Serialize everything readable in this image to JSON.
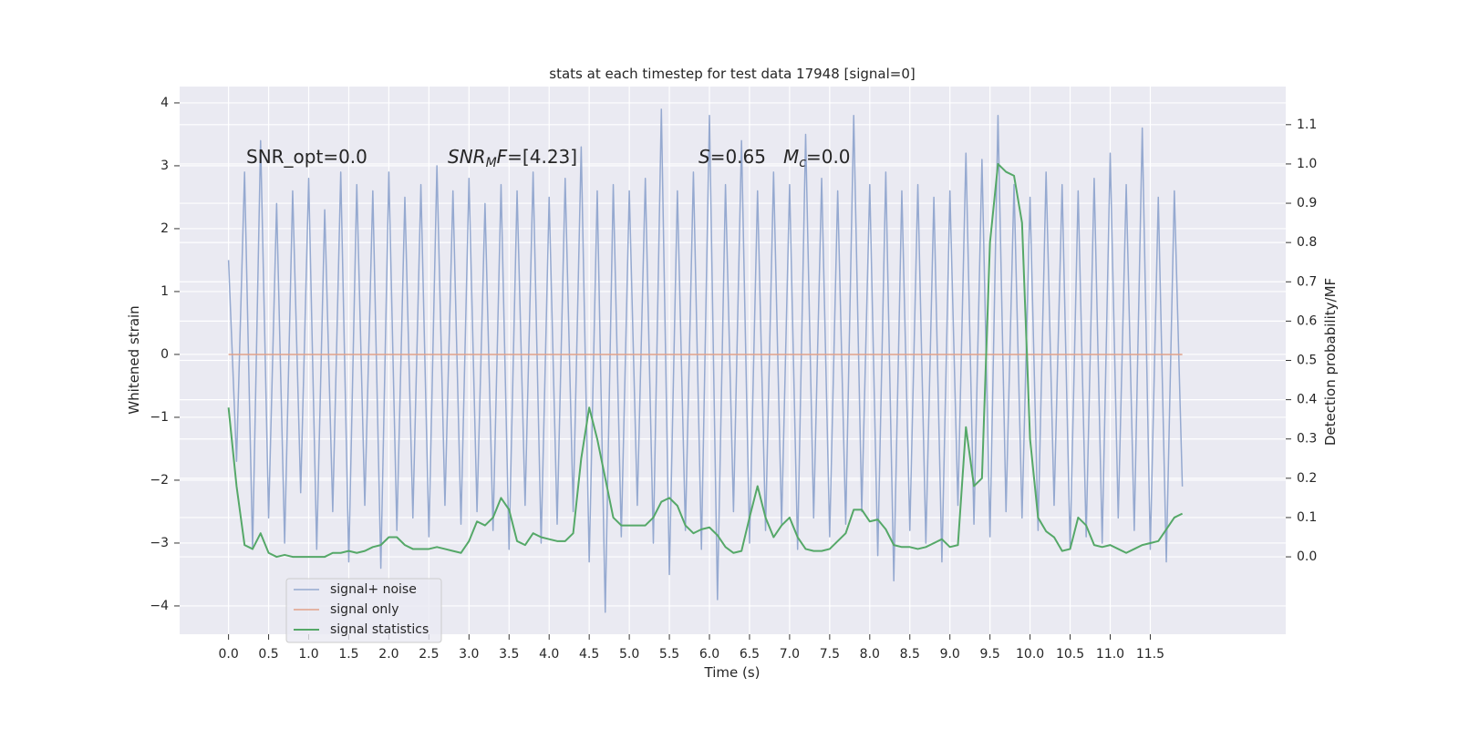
{
  "chart_data": {
    "type": "line",
    "title": "stats at each timestep for test data 17948 [signal=0]",
    "x_label": "Time (s)",
    "y_label": "Whitened strain",
    "y2_label": "Detection probability/MF",
    "x": [
      0,
      0.1,
      0.2,
      0.3,
      0.4,
      0.5,
      0.6,
      0.7,
      0.8,
      0.9,
      1,
      1.1,
      1.2,
      1.3,
      1.4,
      1.5,
      1.6,
      1.7,
      1.8,
      1.9,
      2,
      2.1,
      2.2,
      2.3,
      2.4,
      2.5,
      2.6,
      2.7,
      2.8,
      2.9,
      3,
      3.1,
      3.2,
      3.3,
      3.4,
      3.5,
      3.6,
      3.7,
      3.8,
      3.9,
      4,
      4.1,
      4.2,
      4.3,
      4.4,
      4.5,
      4.6,
      4.7,
      4.8,
      4.9,
      5,
      5.1,
      5.2,
      5.3,
      5.4,
      5.5,
      5.6,
      5.7,
      5.8,
      5.9,
      6,
      6.1,
      6.2,
      6.3,
      6.4,
      6.5,
      6.6,
      6.7,
      6.8,
      6.9,
      7,
      7.1,
      7.2,
      7.3,
      7.4,
      7.5,
      7.6,
      7.7,
      7.8,
      7.9,
      8,
      8.1,
      8.2,
      8.3,
      8.4,
      8.5,
      8.6,
      8.7,
      8.8,
      8.9,
      9,
      9.1,
      9.2,
      9.3,
      9.4,
      9.5,
      9.6,
      9.7,
      9.8,
      9.9,
      10,
      10.1,
      10.2,
      10.3,
      10.4,
      10.5,
      10.6,
      10.7,
      10.8,
      10.9,
      11,
      11.1,
      11.2,
      11.3,
      11.4,
      11.5,
      11.6,
      11.7,
      11.8,
      11.9
    ],
    "series": [
      {
        "name": "signal+ noise",
        "color": "#95a9d0",
        "values": [
          1.5,
          -1.7,
          2.9,
          -3.1,
          3.4,
          -2.6,
          2.4,
          -3.0,
          2.6,
          -2.2,
          2.8,
          -3.1,
          2.3,
          -2.5,
          2.9,
          -3.3,
          2.7,
          -2.4,
          2.6,
          -3.4,
          2.9,
          -2.8,
          2.5,
          -2.6,
          2.7,
          -2.9,
          3.0,
          -2.4,
          2.6,
          -2.7,
          2.8,
          -2.5,
          2.4,
          -2.8,
          2.7,
          -3.1,
          2.6,
          -2.4,
          2.9,
          -3.0,
          2.5,
          -2.7,
          2.8,
          -2.5,
          3.3,
          -3.3,
          2.6,
          -4.1,
          2.7,
          -2.9,
          2.6,
          -2.4,
          2.8,
          -3.0,
          3.9,
          -3.5,
          2.6,
          -2.8,
          2.9,
          -3.1,
          3.8,
          -3.9,
          2.7,
          -2.5,
          3.4,
          -3.0,
          2.6,
          -2.8,
          2.9,
          -2.7,
          2.7,
          -3.1,
          3.5,
          -2.6,
          2.8,
          -2.9,
          2.6,
          -2.7,
          3.8,
          -2.5,
          2.7,
          -3.2,
          2.9,
          -3.6,
          2.6,
          -2.8,
          2.7,
          -3.0,
          2.5,
          -3.3,
          2.6,
          -2.4,
          3.2,
          -2.7,
          3.1,
          -2.9,
          3.8,
          -2.5,
          2.7,
          -2.6,
          2.5,
          -2.8,
          2.9,
          -2.4,
          2.7,
          -3.1,
          2.6,
          -2.9,
          2.8,
          -3.0,
          3.2,
          -2.6,
          2.7,
          -2.8,
          3.6,
          -3.1,
          2.5,
          -3.3,
          2.6,
          -2.1
        ]
      },
      {
        "name": "signal only",
        "color": "#e1a28a",
        "values": [
          0,
          0,
          0,
          0,
          0,
          0,
          0,
          0,
          0,
          0,
          0,
          0,
          0,
          0,
          0,
          0,
          0,
          0,
          0,
          0,
          0,
          0,
          0,
          0,
          0,
          0,
          0,
          0,
          0,
          0,
          0,
          0,
          0,
          0,
          0,
          0,
          0,
          0,
          0,
          0,
          0,
          0,
          0,
          0,
          0,
          0,
          0,
          0,
          0,
          0,
          0,
          0,
          0,
          0,
          0,
          0,
          0,
          0,
          0,
          0,
          0,
          0,
          0,
          0,
          0,
          0,
          0,
          0,
          0,
          0,
          0,
          0,
          0,
          0,
          0,
          0,
          0,
          0,
          0,
          0,
          0,
          0,
          0,
          0,
          0,
          0,
          0,
          0,
          0,
          0,
          0,
          0,
          0,
          0,
          0,
          0,
          0,
          0,
          0,
          0,
          0,
          0,
          0,
          0,
          0,
          0,
          0,
          0,
          0,
          0,
          0,
          0,
          0,
          0,
          0,
          0,
          0,
          0,
          0,
          0
        ]
      },
      {
        "name": "signal statistics",
        "color": "#55a868",
        "axis": "y2",
        "values": [
          0.38,
          0.18,
          0.03,
          0.02,
          0.06,
          0.01,
          0.0,
          0.005,
          0.0,
          0.0,
          0.0,
          0.0,
          0.0,
          0.01,
          0.01,
          0.015,
          0.01,
          0.015,
          0.025,
          0.03,
          0.05,
          0.05,
          0.03,
          0.02,
          0.02,
          0.02,
          0.025,
          0.02,
          0.015,
          0.01,
          0.04,
          0.09,
          0.08,
          0.1,
          0.15,
          0.12,
          0.04,
          0.03,
          0.06,
          0.05,
          0.045,
          0.04,
          0.04,
          0.06,
          0.25,
          0.38,
          0.3,
          0.2,
          0.1,
          0.08,
          0.08,
          0.08,
          0.08,
          0.1,
          0.14,
          0.15,
          0.13,
          0.08,
          0.06,
          0.07,
          0.075,
          0.055,
          0.025,
          0.01,
          0.015,
          0.1,
          0.18,
          0.1,
          0.05,
          0.08,
          0.1,
          0.05,
          0.02,
          0.015,
          0.015,
          0.02,
          0.04,
          0.06,
          0.12,
          0.12,
          0.09,
          0.095,
          0.07,
          0.03,
          0.025,
          0.025,
          0.02,
          0.025,
          0.035,
          0.045,
          0.025,
          0.03,
          0.33,
          0.18,
          0.2,
          0.8,
          1.0,
          0.98,
          0.97,
          0.85,
          0.3,
          0.1,
          0.065,
          0.05,
          0.015,
          0.02,
          0.1,
          0.08,
          0.03,
          0.025,
          0.03,
          0.02,
          0.01,
          0.02,
          0.03,
          0.035,
          0.04,
          0.07,
          0.1,
          0.11
        ]
      }
    ],
    "xlim": [
      -0.61,
      13.19
    ],
    "ylim": [
      -4.45,
      4.26
    ],
    "y2lim": [
      -0.197,
      1.197
    ],
    "xticks": [
      {
        "value": 0,
        "label": "0.0"
      },
      0.5,
      {
        "value": 1,
        "label": "1.0"
      },
      1.5,
      {
        "value": 2,
        "label": "2.0"
      },
      2.5,
      {
        "value": 3,
        "label": "3.0"
      },
      3.5,
      {
        "value": 4,
        "label": "4.0"
      },
      4.5,
      {
        "value": 5,
        "label": "5.0"
      },
      5.5,
      {
        "value": 6,
        "label": "6.0"
      },
      6.5,
      {
        "value": 7,
        "label": "7.0"
      },
      7.5,
      {
        "value": 8,
        "label": "8.0"
      },
      8.5,
      {
        "value": 9,
        "label": "9.0"
      },
      9.5,
      {
        "value": 10,
        "label": "10.0"
      },
      10.5,
      {
        "value": 11,
        "label": "11.0"
      },
      11.5
    ],
    "yticks": [
      {
        "value": -4,
        "label": "−4"
      },
      {
        "value": -3,
        "label": "−3"
      },
      {
        "value": -2,
        "label": "−2"
      },
      {
        "value": -1,
        "label": "−1"
      },
      0,
      1,
      2,
      3,
      4
    ],
    "y2ticks": [
      {
        "value": 0,
        "label": "0.0"
      },
      0.1,
      0.2,
      0.3,
      0.4,
      0.5,
      0.6,
      0.7,
      0.8,
      0.9,
      {
        "value": 1,
        "label": "1.0"
      },
      1.1
    ],
    "grid": true,
    "legend": "lower left",
    "annotations": [
      {
        "parts": [
          {
            "text": "SNR_opt=0.0"
          }
        ]
      },
      {
        "parts": [
          {
            "text": "SNR",
            "italic": true
          },
          {
            "text": "M",
            "italic": true,
            "sub": true
          },
          {
            "text": "F",
            "italic": true
          },
          {
            "text": "=[4.23]"
          }
        ]
      },
      {
        "parts": [
          {
            "text": "S",
            "italic": true
          },
          {
            "text": "=0.65"
          }
        ]
      },
      {
        "parts": [
          {
            "text": "M",
            "italic": true
          },
          {
            "text": "c",
            "italic": true,
            "sub": true
          },
          {
            "text": "=0.0"
          }
        ]
      }
    ]
  }
}
